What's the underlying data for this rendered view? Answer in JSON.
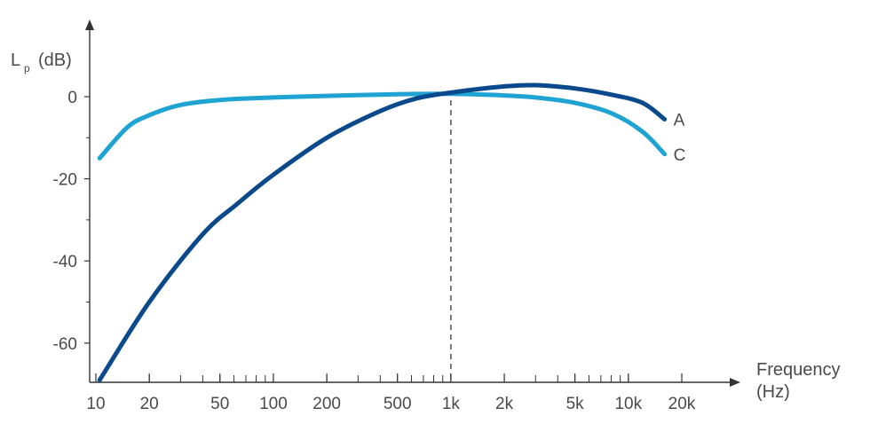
{
  "chart_data": {
    "type": "line",
    "title": "",
    "ylabel": {
      "main": "L",
      "subscript": "p",
      "unit": "(dB)"
    },
    "xlabel": {
      "line1": "Frequency",
      "line2": "(Hz)"
    },
    "x_scale": "log",
    "xlim": [
      10,
      20000
    ],
    "ylim": [
      -70,
      12
    ],
    "y_ticks": [
      {
        "value": 0,
        "label": "0"
      },
      {
        "value": -20,
        "label": "-20"
      },
      {
        "value": -40,
        "label": "-40"
      },
      {
        "value": -60,
        "label": "-60"
      }
    ],
    "y_minor_ticks": [
      -10,
      -30,
      -50
    ],
    "x_ticks": [
      {
        "value": 10,
        "label": "10"
      },
      {
        "value": 20,
        "label": "20"
      },
      {
        "value": 50,
        "label": "50"
      },
      {
        "value": 100,
        "label": "100"
      },
      {
        "value": 200,
        "label": "200"
      },
      {
        "value": 500,
        "label": "500"
      },
      {
        "value": 1000,
        "label": "1k"
      },
      {
        "value": 2000,
        "label": "2k"
      },
      {
        "value": 5000,
        "label": "5k"
      },
      {
        "value": 10000,
        "label": "10k"
      },
      {
        "value": 20000,
        "label": "20k"
      }
    ],
    "reference_line": {
      "x": 1000
    },
    "grid": false,
    "series": [
      {
        "name": "A",
        "color": "#0a4a8c",
        "x": [
          10.5,
          20,
          40,
          63,
          100,
          200,
          400,
          630,
          1000,
          2000,
          3000,
          5000,
          8000,
          12000,
          16000
        ],
        "y": [
          -69,
          -50,
          -33.5,
          -26,
          -19,
          -10,
          -3.5,
          -0.5,
          1,
          2.5,
          2.8,
          2,
          0.5,
          -1.5,
          -5.5
        ]
      },
      {
        "name": "C",
        "color": "#1ea3d3",
        "x": [
          10.5,
          15,
          20,
          30,
          50,
          100,
          200,
          500,
          1000,
          2000,
          3000,
          5000,
          8000,
          12000,
          16000
        ],
        "y": [
          -15,
          -7.5,
          -4.5,
          -2,
          -0.8,
          -0.2,
          0.2,
          0.6,
          0.7,
          0.3,
          -0.2,
          -1.5,
          -4,
          -8.5,
          -14
        ]
      }
    ]
  }
}
